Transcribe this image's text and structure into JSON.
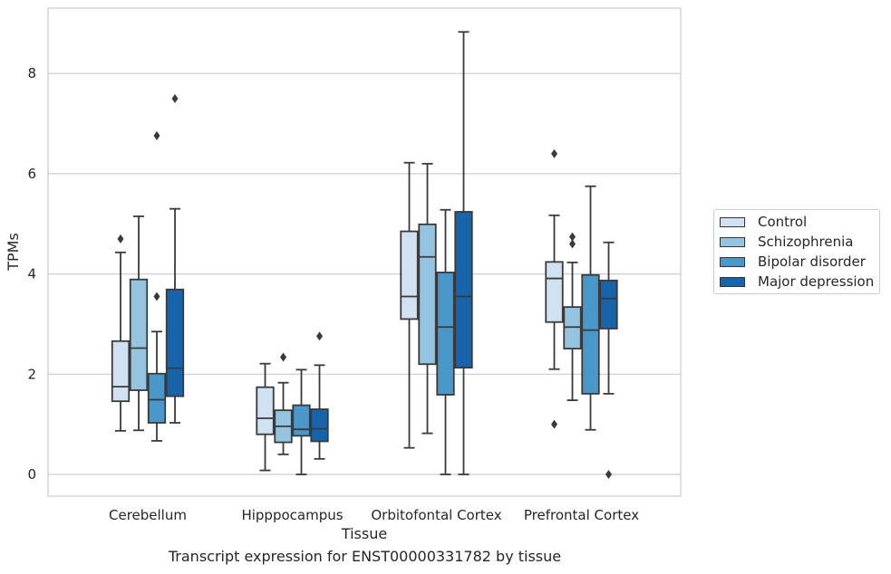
{
  "chart_data": {
    "type": "box",
    "xlabel": "Tissue",
    "ylabel": "TPMs",
    "caption": "Transcript expression for ENST00000331782 by tissue",
    "ylim": [
      -0.4,
      9.3
    ],
    "yticks": [
      0,
      2,
      4,
      6,
      8
    ],
    "grid": true,
    "legend_position": "right",
    "categories": [
      "Cerebellum",
      "Hipppocampus",
      "Orbitofontal Cortex",
      "Prefrontal Cortex"
    ],
    "series": [
      {
        "name": "Control",
        "color": "#d0e1f2",
        "boxes": [
          {
            "whisker_low": 0.87,
            "q1": 1.46,
            "median": 1.75,
            "q3": 2.66,
            "whisker_high": 4.43,
            "outliers": [
              4.7
            ]
          },
          {
            "whisker_low": 0.08,
            "q1": 0.8,
            "median": 1.12,
            "q3": 1.74,
            "whisker_high": 2.21,
            "outliers": []
          },
          {
            "whisker_low": 0.53,
            "q1": 3.1,
            "median": 3.55,
            "q3": 4.85,
            "whisker_high": 6.22,
            "outliers": []
          },
          {
            "whisker_low": 2.1,
            "q1": 3.04,
            "median": 3.91,
            "q3": 4.24,
            "whisker_high": 5.17,
            "outliers": [
              6.4,
              1.0
            ]
          }
        ]
      },
      {
        "name": "Schizophrenia",
        "color": "#94c4df",
        "boxes": [
          {
            "whisker_low": 0.88,
            "q1": 1.68,
            "median": 2.52,
            "q3": 3.89,
            "whisker_high": 5.15,
            "outliers": []
          },
          {
            "whisker_low": 0.4,
            "q1": 0.64,
            "median": 0.96,
            "q3": 1.28,
            "whisker_high": 1.83,
            "outliers": [
              2.34
            ]
          },
          {
            "whisker_low": 0.82,
            "q1": 2.2,
            "median": 4.34,
            "q3": 4.99,
            "whisker_high": 6.2,
            "outliers": []
          },
          {
            "whisker_low": 1.48,
            "q1": 2.51,
            "median": 2.94,
            "q3": 3.34,
            "whisker_high": 4.23,
            "outliers": [
              4.74,
              4.6
            ]
          }
        ]
      },
      {
        "name": "Bipolar disorder",
        "color": "#4a98c9",
        "boxes": [
          {
            "whisker_low": 0.67,
            "q1": 1.03,
            "median": 1.49,
            "q3": 2.01,
            "whisker_high": 2.85,
            "outliers": [
              3.55,
              6.76
            ]
          },
          {
            "whisker_low": 0.0,
            "q1": 0.77,
            "median": 0.9,
            "q3": 1.38,
            "whisker_high": 2.09,
            "outliers": []
          },
          {
            "whisker_low": 0.0,
            "q1": 1.59,
            "median": 2.94,
            "q3": 4.03,
            "whisker_high": 5.28,
            "outliers": []
          },
          {
            "whisker_low": 0.89,
            "q1": 1.61,
            "median": 2.88,
            "q3": 3.98,
            "whisker_high": 5.75,
            "outliers": []
          }
        ]
      },
      {
        "name": "Major depression",
        "color": "#1764ab",
        "boxes": [
          {
            "whisker_low": 1.03,
            "q1": 1.56,
            "median": 2.12,
            "q3": 3.69,
            "whisker_high": 5.3,
            "outliers": [
              7.5
            ]
          },
          {
            "whisker_low": 0.31,
            "q1": 0.66,
            "median": 0.91,
            "q3": 1.3,
            "whisker_high": 2.18,
            "outliers": [
              2.76
            ]
          },
          {
            "whisker_low": 0.0,
            "q1": 2.13,
            "median": 3.55,
            "q3": 5.24,
            "whisker_high": 8.83,
            "outliers": []
          },
          {
            "whisker_low": 1.61,
            "q1": 2.91,
            "median": 3.51,
            "q3": 3.87,
            "whisker_high": 4.63,
            "outliers": [
              0.0
            ]
          }
        ]
      }
    ]
  }
}
